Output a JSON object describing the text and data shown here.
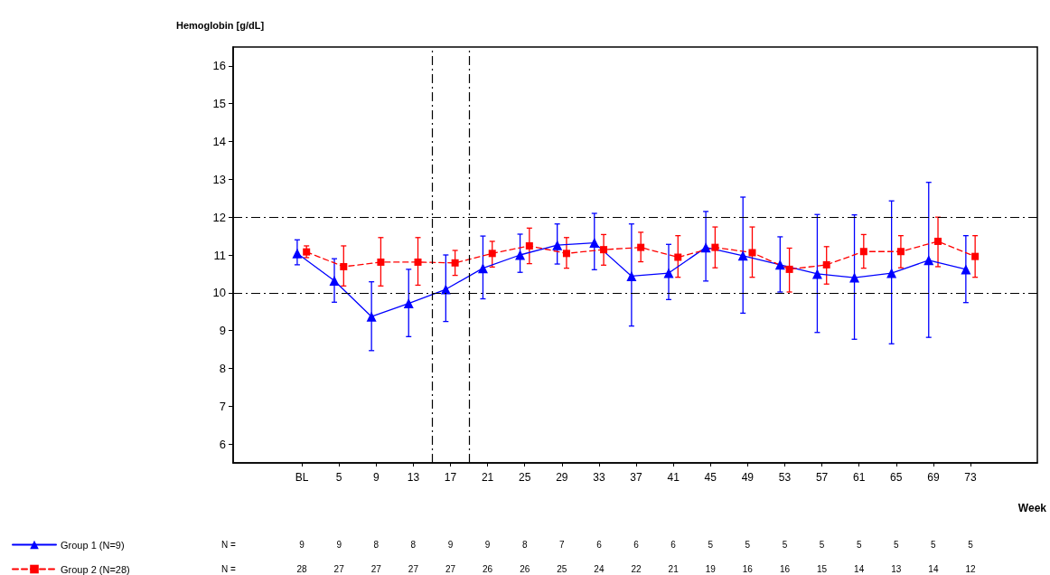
{
  "chart_data": {
    "type": "line",
    "ylabel": "Hemoglobin [g/dL]",
    "xlabel": "Week",
    "xlim": [
      -6.4,
      80.2
    ],
    "xticks": [
      {
        "value": 1,
        "label": "BL"
      },
      5,
      9,
      13,
      17,
      21,
      25,
      29,
      33,
      37,
      41,
      45,
      49,
      53,
      57,
      61,
      65,
      69,
      73
    ],
    "ylim": [
      5.5,
      16.5
    ],
    "yticks": [
      6,
      7,
      8,
      9,
      10,
      11,
      12,
      13,
      14,
      15,
      16
    ],
    "grid": false,
    "legend": "bottom left",
    "series": [
      {
        "name": "Group 1 (N=9)",
        "color": "#0000ff",
        "marker": "triangle",
        "line_style": "solid",
        "x": [
          0.5,
          4.5,
          8.5,
          12.5,
          16.5,
          20.5,
          24.5,
          28.5,
          32.5,
          36.5,
          40.5,
          44.5,
          48.5,
          52.5,
          56.5,
          60.5,
          64.5,
          68.5,
          72.5
        ],
        "values": [
          11.04,
          10.32,
          9.37,
          9.72,
          10.09,
          10.65,
          11.0,
          11.26,
          11.32,
          10.44,
          10.52,
          11.2,
          10.98,
          10.74,
          10.5,
          10.4,
          10.52,
          10.86,
          10.62
        ],
        "errors": [
          [
            10.74,
            11.4
          ],
          [
            9.75,
            10.9
          ],
          [
            8.47,
            10.29
          ],
          [
            8.84,
            10.62
          ],
          [
            9.24,
            11.0
          ],
          [
            9.84,
            11.5
          ],
          [
            10.54,
            11.55
          ],
          [
            10.76,
            11.82
          ],
          [
            10.61,
            12.1
          ],
          [
            9.12,
            11.82
          ],
          [
            9.82,
            11.28
          ],
          [
            10.31,
            12.15
          ],
          [
            9.46,
            12.53
          ],
          [
            10.02,
            11.48
          ],
          [
            8.95,
            12.07
          ],
          [
            8.77,
            12.06
          ],
          [
            8.65,
            12.43
          ],
          [
            8.82,
            12.92
          ],
          [
            9.74,
            11.51
          ]
        ]
      },
      {
        "name": "Group 2 (N=28)",
        "color": "#ff0000",
        "marker": "square",
        "line_style": "dashed",
        "x": [
          1.5,
          5.5,
          9.5,
          13.5,
          17.5,
          21.5,
          25.5,
          29.5,
          33.5,
          37.5,
          41.5,
          45.5,
          49.5,
          53.5,
          57.5,
          61.5,
          65.5,
          69.5,
          73.5
        ],
        "values": [
          11.08,
          10.69,
          10.81,
          10.81,
          10.79,
          11.04,
          11.24,
          11.04,
          11.14,
          11.2,
          10.94,
          11.2,
          11.06,
          10.62,
          10.74,
          11.09,
          11.09,
          11.36,
          10.96
        ],
        "errors": [
          [
            10.93,
            11.24
          ],
          [
            10.18,
            11.24
          ],
          [
            10.18,
            11.46
          ],
          [
            10.2,
            11.46
          ],
          [
            10.46,
            11.12
          ],
          [
            10.68,
            11.36
          ],
          [
            10.77,
            11.71
          ],
          [
            10.65,
            11.46
          ],
          [
            10.73,
            11.54
          ],
          [
            10.82,
            11.6
          ],
          [
            10.41,
            11.51
          ],
          [
            10.66,
            11.74
          ],
          [
            10.41,
            11.74
          ],
          [
            10.02,
            11.18
          ],
          [
            10.23,
            11.22
          ],
          [
            10.65,
            11.54
          ],
          [
            10.66,
            11.51
          ],
          [
            10.69,
            12.0
          ],
          [
            10.41,
            11.51
          ]
        ]
      }
    ],
    "ref_lines": [
      {
        "axis": "y",
        "value": 12,
        "color": "#000000",
        "line_style": "dashdot"
      },
      {
        "axis": "y",
        "value": 10,
        "color": "#000000",
        "line_style": "dashdot"
      },
      {
        "axis": "x",
        "value": 15,
        "color": "#000000",
        "line_style": "dashdot"
      },
      {
        "axis": "x",
        "value": 19,
        "color": "#000000",
        "line_style": "dashdot"
      }
    ],
    "annotations": [
      "N =",
      "9",
      "9",
      "8",
      "8",
      "9",
      "9",
      "8",
      "7",
      "6",
      "6",
      "6",
      "5",
      "5",
      "5",
      "5",
      "5",
      "5",
      "5",
      "5",
      "N =",
      "28",
      "27",
      "27",
      "27",
      "27",
      "26",
      "26",
      "25",
      "24",
      "22",
      "21",
      "19",
      "16",
      "16",
      "15",
      "14",
      "13",
      "14",
      "12"
    ]
  }
}
